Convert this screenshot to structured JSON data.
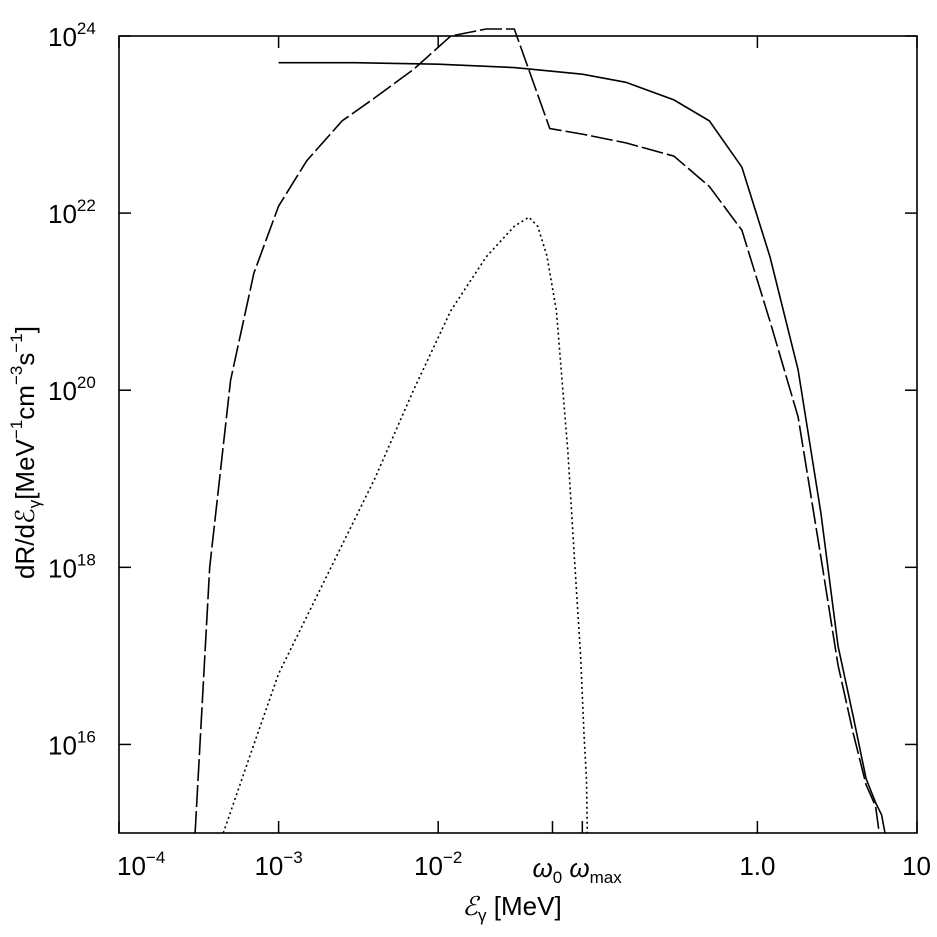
{
  "chart_data": {
    "type": "line",
    "xlabel": {
      "base": "ℰ",
      "sub": "γ",
      "rest": " [MeV]"
    },
    "ylabel": {
      "parts": [
        {
          "t": "dR/dℰ",
          "s": ""
        },
        {
          "t": "γ",
          "s": "sub"
        },
        {
          "t": "[MeV",
          "s": ""
        },
        {
          "t": "−1",
          "s": "sup"
        },
        {
          "t": "cm",
          "s": ""
        },
        {
          "t": "−3",
          "s": "sup"
        },
        {
          "t": "s",
          "s": ""
        },
        {
          "t": "−1",
          "s": "sup"
        },
        {
          "t": "]",
          "s": ""
        }
      ]
    },
    "x_scale": "log",
    "y_scale": "log",
    "xlim": [
      0.0001,
      10
    ],
    "ylim": [
      1000000000000000.0,
      1e+24
    ],
    "grid": false,
    "x_ticks": [
      {
        "value": 0.0001,
        "base": "10",
        "exp": "−4"
      },
      {
        "value": 0.001,
        "base": "10",
        "exp": "−3"
      },
      {
        "value": 0.01,
        "base": "10",
        "exp": "−2"
      },
      {
        "value": 1.0,
        "base": "1.0",
        "exp": ""
      },
      {
        "value": 10,
        "base": "10",
        "exp": ""
      }
    ],
    "x_annotations": [
      {
        "value": 0.052,
        "base": "ω",
        "sub": "0"
      },
      {
        "value": 0.08,
        "base": "ω",
        "sub": "max"
      }
    ],
    "y_ticks": [
      {
        "value": 1e+16,
        "base": "10",
        "exp": "16"
      },
      {
        "value": 1e+18,
        "base": "10",
        "exp": "18"
      },
      {
        "value": 1e+20,
        "base": "10",
        "exp": "20"
      },
      {
        "value": 1e+22,
        "base": "10",
        "exp": "22"
      },
      {
        "value": 1e+24,
        "base": "10",
        "exp": "24"
      }
    ],
    "series": [
      {
        "style": "solid",
        "x": [
          0.001,
          0.003,
          0.01,
          0.03,
          0.08,
          0.15,
          0.3,
          0.5,
          0.8,
          1.2,
          1.8,
          2.5,
          3.2,
          4.0,
          4.8,
          5.5,
          6.0,
          6.3
        ],
        "y": [
          5e+23,
          5e+23,
          4.8e+23,
          4.4e+23,
          3.7e+23,
          3e+23,
          1.9e+23,
          1.1e+23,
          3.3e+22,
          3.2e+21,
          1.7e+20,
          4.1e+18,
          1.3e+17,
          2e+16,
          4100000000000000.0,
          2200000000000000.0,
          1600000000000000.0,
          1000000000000000.0
        ]
      },
      {
        "style": "dashed",
        "x": [
          0.0003,
          0.00037,
          0.0005,
          0.0007,
          0.001,
          0.0015,
          0.0025,
          0.004,
          0.007,
          0.012,
          0.02,
          0.03,
          0.05,
          0.08,
          0.15,
          0.3,
          0.5,
          0.8,
          1.2,
          1.8,
          2.5,
          3.2,
          4.0,
          4.8,
          5.5,
          5.8
        ],
        "y": [
          1000000000000000.0,
          1e+18,
          1.3e+20,
          2.1e+21,
          1.2e+22,
          3.9e+22,
          1.1e+23,
          2e+23,
          4.2e+23,
          1e+24,
          1.2e+24,
          1.2e+24,
          9e+22,
          7.8e+22,
          6.2e+22,
          4.4e+22,
          2e+22,
          6.4e+21,
          6e+20,
          5e+19,
          1.3e+18,
          7.9e+16,
          1.3e+16,
          3500000000000000.0,
          2000000000000000.0,
          1000000000000000.0
        ]
      },
      {
        "style": "dotted",
        "x": [
          0.00045,
          0.0007,
          0.001,
          0.002,
          0.004,
          0.007,
          0.012,
          0.02,
          0.03,
          0.037,
          0.042,
          0.048,
          0.055,
          0.065,
          0.072,
          0.078,
          0.082,
          0.085,
          0.086
        ],
        "y": [
          1000000000000000.0,
          1e+16,
          6.3e+16,
          7.9e+17,
          1e+19,
          1e+20,
          7.9e+20,
          3.2e+21,
          7.1e+21,
          9e+21,
          7.1e+21,
          3.3e+21,
          7.9e+20,
          2e+19,
          1e+18,
          1e+17,
          1.3e+16,
          4000000000000000.0,
          1000000000000000.0
        ]
      }
    ]
  }
}
